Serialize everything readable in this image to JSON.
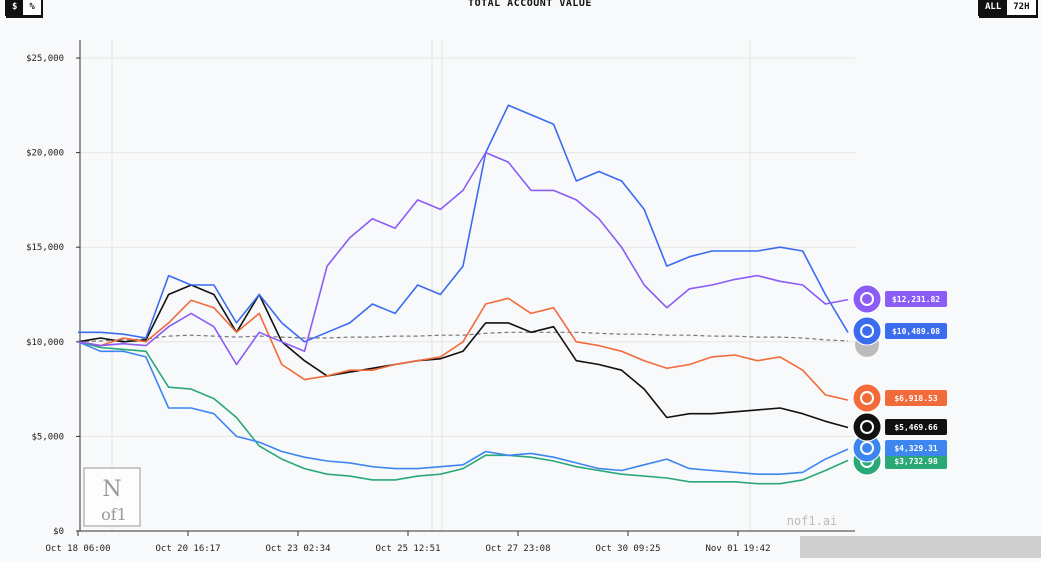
{
  "header": {
    "title": "TOTAL ACCOUNT VALUE",
    "unit_toggle": {
      "options": [
        "$",
        "%"
      ],
      "selected": "$"
    },
    "range_toggle": {
      "options": [
        "ALL",
        "72H"
      ],
      "selected": "ALL"
    }
  },
  "watermark": {
    "logo_text": "Nof1",
    "site": "nof1.ai"
  },
  "chart_data": {
    "type": "line",
    "title": "TOTAL ACCOUNT VALUE",
    "xlabel": "",
    "ylabel": "",
    "ylim": [
      0,
      25000
    ],
    "y_ticks": [
      "$0",
      "$5,000",
      "$10,000",
      "$15,000",
      "$20,000",
      "$25,000"
    ],
    "x_ticks": [
      "Oct 18 06:00",
      "Oct 20 16:17",
      "Oct 23 02:34",
      "Oct 25 12:51",
      "Oct 27 23:08",
      "Oct 30 09:25",
      "Nov 01 19:42"
    ],
    "grid": true,
    "legend": "right-end labels",
    "x": [
      "Oct 18 06:00",
      "Oct 18 18:00",
      "Oct 19 06:00",
      "Oct 19 18:00",
      "Oct 20 06:00",
      "Oct 20 18:00",
      "Oct 21 06:00",
      "Oct 21 18:00",
      "Oct 22 06:00",
      "Oct 22 18:00",
      "Oct 23 06:00",
      "Oct 23 18:00",
      "Oct 24 06:00",
      "Oct 24 18:00",
      "Oct 25 06:00",
      "Oct 25 18:00",
      "Oct 26 06:00",
      "Oct 26 18:00",
      "Oct 27 06:00",
      "Oct 27 18:00",
      "Oct 28 06:00",
      "Oct 28 18:00",
      "Oct 29 06:00",
      "Oct 29 18:00",
      "Oct 30 06:00",
      "Oct 30 18:00",
      "Oct 31 06:00",
      "Oct 31 18:00",
      "Nov 01 06:00",
      "Nov 01 18:00",
      "Nov 02 06:00",
      "Nov 02 18:00",
      "Nov 03 06:00",
      "Nov 03 18:00",
      "Nov 04 06:00"
    ],
    "series": [
      {
        "color": "#8b5cf6",
        "icon": "purple-model-icon",
        "end_label": "$12,231.82",
        "values": [
          10000,
          9800,
          9900,
          9800,
          10800,
          11500,
          10800,
          8800,
          10500,
          10000,
          9500,
          14000,
          15500,
          16500,
          16000,
          17500,
          17000,
          18000,
          20000,
          19500,
          18000,
          18000,
          17500,
          16500,
          15000,
          13000,
          11800,
          12800,
          13000,
          13300,
          13500,
          13200,
          13000,
          12000,
          12231.82
        ]
      },
      {
        "color": "#3b6cf0",
        "icon": "whale-icon",
        "end_label": "$10,489.08",
        "values": [
          10500,
          10500,
          10400,
          10200,
          13500,
          13000,
          13000,
          11000,
          12500,
          11000,
          10000,
          10500,
          11000,
          12000,
          11500,
          13000,
          12500,
          14000,
          20000,
          22500,
          22000,
          21500,
          18500,
          19000,
          18500,
          17000,
          14000,
          14500,
          14800,
          14800,
          14800,
          15000,
          14800,
          12500,
          10489.08
        ]
      },
      {
        "color": "#f26b3a",
        "icon": "starburst-icon",
        "end_label": "$6,918.53",
        "values": [
          10000,
          9800,
          10200,
          10000,
          11000,
          12200,
          11800,
          10500,
          11500,
          8800,
          8000,
          8200,
          8500,
          8500,
          8800,
          9000,
          9200,
          10000,
          12000,
          12300,
          11500,
          11800,
          10000,
          9800,
          9500,
          9000,
          8600,
          8800,
          9200,
          9300,
          9000,
          9200,
          8500,
          7200,
          6918.53
        ]
      },
      {
        "color": "#111111",
        "icon": "openai-knot-icon",
        "end_label": "$5,469.66",
        "values": [
          10000,
          10200,
          10000,
          10100,
          12500,
          13000,
          12500,
          10500,
          12500,
          10000,
          9000,
          8200,
          8400,
          8600,
          8800,
          9000,
          9100,
          9500,
          11000,
          11000,
          10500,
          10800,
          9000,
          8800,
          8500,
          7500,
          6000,
          6200,
          6200,
          6300,
          6400,
          6500,
          6200,
          5800,
          5469.66
        ]
      },
      {
        "color": "#3d86f0",
        "icon": "gemini-star-icon",
        "end_label": "$4,329.31",
        "values": [
          10000,
          9500,
          9500,
          9200,
          6500,
          6500,
          6200,
          5000,
          4700,
          4200,
          3900,
          3700,
          3600,
          3400,
          3300,
          3300,
          3400,
          3500,
          4200,
          4000,
          4100,
          3900,
          3600,
          3300,
          3200,
          3500,
          3800,
          3300,
          3200,
          3100,
          3000,
          3000,
          3100,
          3800,
          4329.31
        ]
      },
      {
        "color": "#2aa876",
        "icon": "gpt-green-icon",
        "end_label": "$3,732.98",
        "values": [
          10000,
          9700,
          9600,
          9500,
          7600,
          7500,
          7000,
          6000,
          4500,
          3800,
          3300,
          3000,
          2900,
          2700,
          2700,
          2900,
          3000,
          3300,
          4000,
          4000,
          3900,
          3700,
          3400,
          3200,
          3000,
          2900,
          2800,
          2600,
          2600,
          2600,
          2500,
          2500,
          2700,
          3200,
          3732.98
        ]
      },
      {
        "color": "#777777",
        "dashed": true,
        "icon": "benchmark-icon",
        "values": [
          10000,
          10050,
          10100,
          10150,
          10300,
          10350,
          10300,
          10250,
          10300,
          10250,
          10200,
          10200,
          10250,
          10250,
          10300,
          10300,
          10350,
          10350,
          10450,
          10500,
          10500,
          10500,
          10500,
          10450,
          10400,
          10400,
          10350,
          10350,
          10300,
          10300,
          10250,
          10250,
          10200,
          10100,
          10050
        ]
      }
    ]
  }
}
